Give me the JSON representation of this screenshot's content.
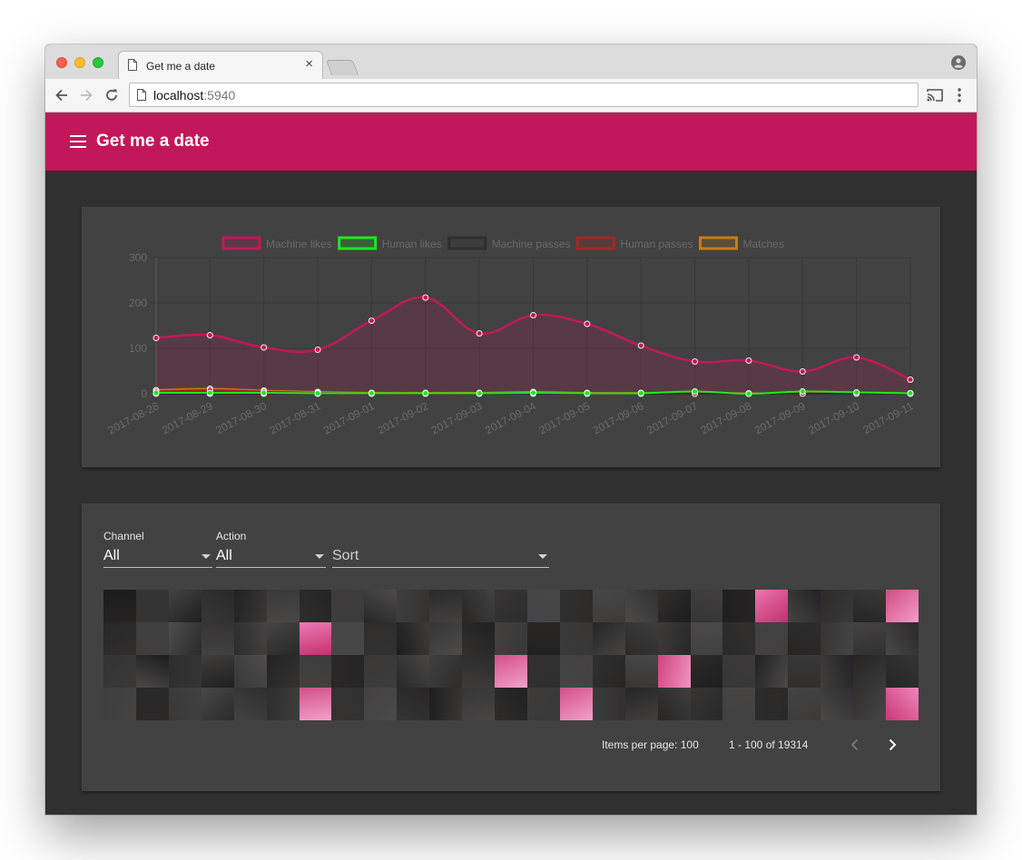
{
  "browser": {
    "tab_title": "Get me a date",
    "tab_close": "×",
    "url_host": "localhost",
    "url_port": ":5940"
  },
  "app": {
    "title": "Get me a date"
  },
  "chart_data": {
    "type": "line",
    "categories": [
      "2017-08-28",
      "2017-08-29",
      "2017-08-30",
      "2017-08-31",
      "2017-09-01",
      "2017-09-02",
      "2017-09-03",
      "2017-09-04",
      "2017-09-05",
      "2017-09-06",
      "2017-09-07",
      "2017-09-08",
      "2017-09-09",
      "2017-09-10",
      "2017-09-11"
    ],
    "ylim": [
      0,
      300
    ],
    "yticks": [
      0,
      100,
      200,
      300
    ],
    "grid": true,
    "legend_position": "top",
    "series": [
      {
        "name": "Machine likes",
        "color": "#c2185b",
        "fill": true,
        "values": [
          123,
          129,
          102,
          97,
          161,
          212,
          133,
          173,
          154,
          106,
          71,
          73,
          49,
          80,
          31
        ]
      },
      {
        "name": "Human likes",
        "color": "#1ee81e",
        "fill": false,
        "values": [
          2,
          2,
          2,
          1,
          1,
          1,
          1,
          2,
          1,
          1,
          5,
          0,
          5,
          3,
          1
        ]
      },
      {
        "name": "Machine passes",
        "color": "#2e2e2e",
        "fill": false,
        "values": [
          0,
          0,
          0,
          0,
          0,
          0,
          0,
          0,
          0,
          0,
          0,
          0,
          0,
          0,
          0
        ]
      },
      {
        "name": "Human passes",
        "color": "#a32626",
        "fill": false,
        "values": [
          5,
          8,
          5,
          2,
          1,
          1,
          1,
          2,
          1,
          1,
          1,
          0,
          1,
          1,
          1
        ]
      },
      {
        "name": "Matches",
        "color": "#c97d12",
        "fill": false,
        "values": [
          8,
          11,
          7,
          4,
          2,
          2,
          2,
          4,
          2,
          2,
          3,
          1,
          2,
          2,
          1
        ]
      }
    ]
  },
  "filters": {
    "channel": {
      "label": "Channel",
      "value": "All"
    },
    "action": {
      "label": "Action",
      "value": "All"
    },
    "sort": {
      "placeholder": "Sort"
    }
  },
  "gallery": {
    "rows": 4,
    "cols": 25,
    "pink_tiles": [
      20,
      24,
      31,
      62,
      67,
      81,
      89,
      99
    ]
  },
  "paginator": {
    "items_per_page_label": "Items per page:",
    "items_per_page": "100",
    "range_label": "1 - 100 of 19314"
  },
  "colors": {
    "accent": "#c2185b",
    "background": "#303030",
    "card": "#424242"
  }
}
